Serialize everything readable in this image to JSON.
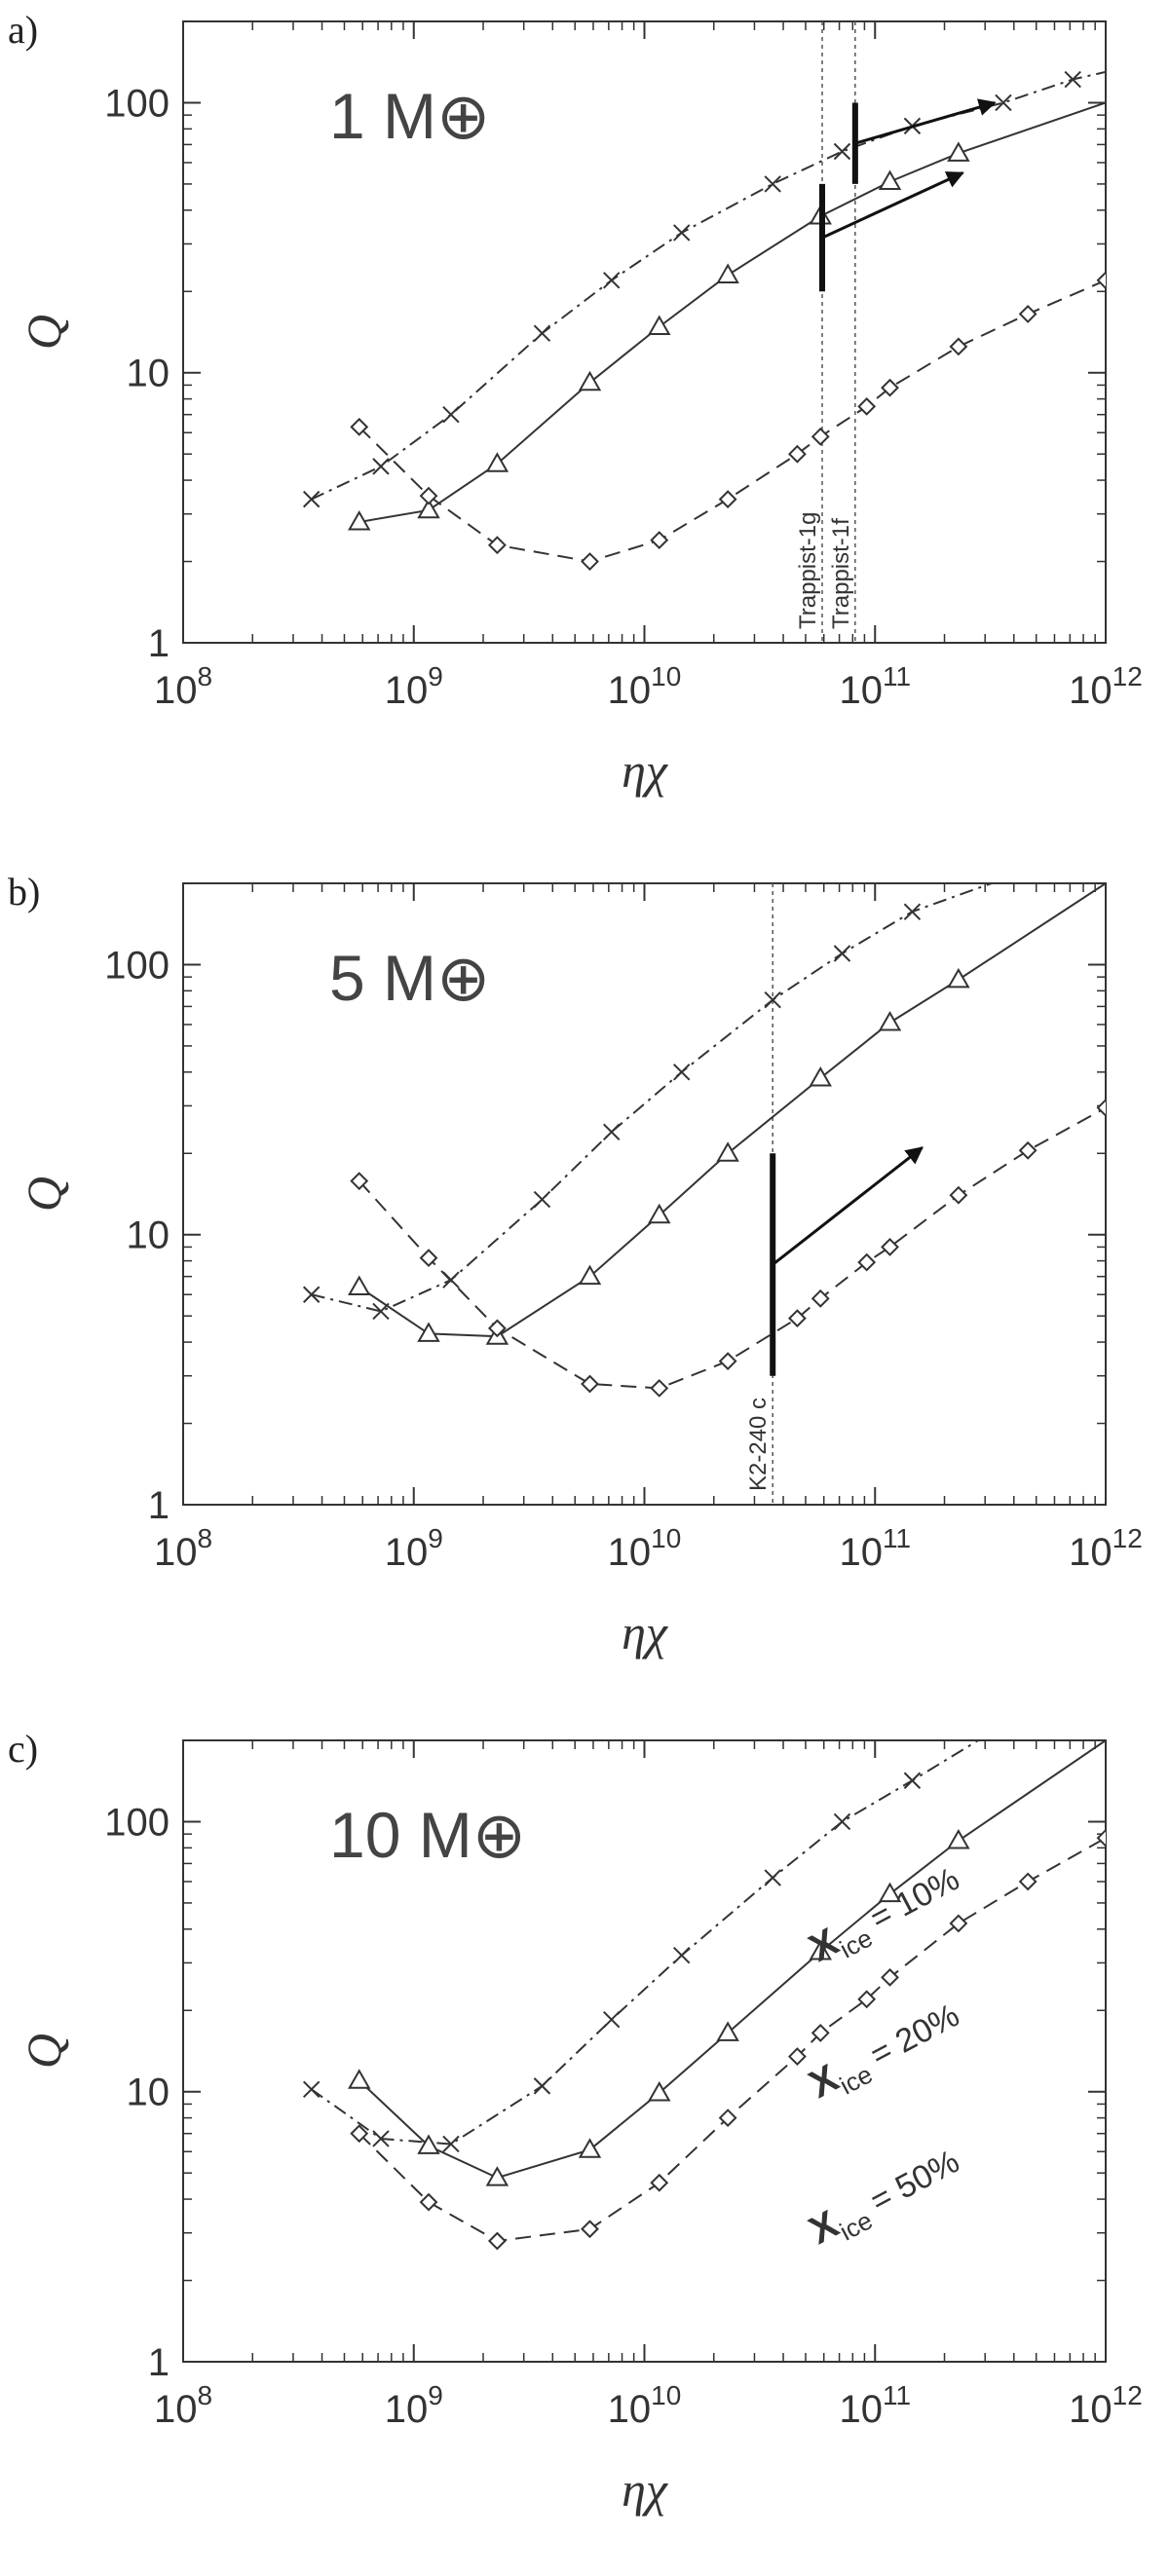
{
  "x_axis_label": "ηχ",
  "y_axis_label": "Q",
  "chart_data": [
    {
      "type": "line",
      "panel_tag": "a)",
      "mass_label": "1 M⊕",
      "xscale": "log",
      "yscale": "log",
      "xlim": [
        100000000.0,
        1000000000000.0
      ],
      "ylim": [
        1,
        200
      ],
      "x_ticks": [
        100000000.0,
        1000000000.0,
        10000000000.0,
        100000000000.0,
        1000000000000.0
      ],
      "x_tick_labels": [
        [
          "10",
          "8"
        ],
        [
          "10",
          "9"
        ],
        [
          "10",
          "10"
        ],
        [
          "10",
          "11"
        ],
        [
          "10",
          "12"
        ]
      ],
      "y_ticks": [
        1,
        10,
        100
      ],
      "y_tick_labels": [
        "1",
        "10",
        "100"
      ],
      "series": [
        {
          "key": "ice10",
          "style": "dashdot",
          "marker": "x",
          "points": [
            [
              360000000.0,
              3.4
            ],
            [
              720000000.0,
              4.5
            ],
            [
              1450000000.0,
              7.0
            ],
            [
              3600000000.0,
              14
            ],
            [
              7200000000.0,
              22
            ],
            [
              14500000000.0,
              33
            ],
            [
              36000000000.0,
              50
            ],
            [
              72000000000.0,
              66
            ],
            [
              145000000000.0,
              82
            ],
            [
              360000000000.0,
              100
            ],
            [
              720000000000.0,
              122
            ]
          ],
          "line_end": [
            1000000000000.0,
            130
          ]
        },
        {
          "key": "ice20",
          "style": "solid",
          "marker": "triangle",
          "points": [
            [
              580000000.0,
              2.8
            ],
            [
              1160000000.0,
              3.1
            ],
            [
              2300000000.0,
              4.6
            ],
            [
              5800000000.0,
              9.2
            ],
            [
              11600000000.0,
              14.8
            ],
            [
              23000000000.0,
              23
            ],
            [
              58000000000.0,
              38
            ],
            [
              116000000000.0,
              51
            ],
            [
              230000000000.0,
              65
            ]
          ],
          "line_end": [
            1000000000000.0,
            100
          ]
        },
        {
          "key": "ice50",
          "style": "dashed",
          "marker": "diamond",
          "points": [
            [
              580000000.0,
              6.3
            ],
            [
              1160000000.0,
              3.5
            ],
            [
              2300000000.0,
              2.3
            ],
            [
              5800000000.0,
              2.0
            ],
            [
              11600000000.0,
              2.4
            ],
            [
              23000000000.0,
              3.4
            ],
            [
              46000000000.0,
              5.0
            ],
            [
              58000000000.0,
              5.8
            ],
            [
              92000000000.0,
              7.5
            ],
            [
              116000000000.0,
              8.8
            ],
            [
              230000000000.0,
              12.5
            ],
            [
              460000000000.0,
              16.5
            ],
            [
              1000000000000.0,
              22
            ]
          ]
        }
      ],
      "markers": [
        {
          "label": "Trappist-1g",
          "x": 59000000000.0,
          "q_range": [
            20,
            50
          ],
          "arrow_to": [
            240000000000.0,
            55
          ]
        },
        {
          "label": "Trappist-1f",
          "x": 82000000000.0,
          "q_range": [
            50,
            100
          ],
          "arrow_to": [
            330000000000.0,
            100
          ]
        }
      ]
    },
    {
      "type": "line",
      "panel_tag": "b)",
      "mass_label": "5 M⊕",
      "xscale": "log",
      "yscale": "log",
      "xlim": [
        100000000.0,
        1000000000000.0
      ],
      "ylim": [
        1,
        200
      ],
      "x_ticks": [
        100000000.0,
        1000000000.0,
        10000000000.0,
        100000000000.0,
        1000000000000.0
      ],
      "x_tick_labels": [
        [
          "10",
          "8"
        ],
        [
          "10",
          "9"
        ],
        [
          "10",
          "10"
        ],
        [
          "10",
          "11"
        ],
        [
          "10",
          "12"
        ]
      ],
      "y_ticks": [
        1,
        10,
        100
      ],
      "y_tick_labels": [
        "1",
        "10",
        "100"
      ],
      "series": [
        {
          "key": "ice10",
          "style": "dashdot",
          "marker": "x",
          "points": [
            [
              360000000.0,
              6.0
            ],
            [
              720000000.0,
              5.2
            ],
            [
              1450000000.0,
              6.8
            ],
            [
              3600000000.0,
              13.5
            ],
            [
              7200000000.0,
              24
            ],
            [
              14500000000.0,
              40
            ],
            [
              36000000000.0,
              74
            ],
            [
              72000000000.0,
              110
            ],
            [
              145000000000.0,
              157
            ]
          ],
          "line_end": [
            320000000000.0,
            200
          ]
        },
        {
          "key": "ice20",
          "style": "solid",
          "marker": "triangle",
          "points": [
            [
              580000000.0,
              6.4
            ],
            [
              1160000000.0,
              4.3
            ],
            [
              2300000000.0,
              4.2
            ],
            [
              5800000000.0,
              7.0
            ],
            [
              11600000000.0,
              11.8
            ],
            [
              23000000000.0,
              20
            ],
            [
              58000000000.0,
              38
            ],
            [
              116000000000.0,
              61
            ],
            [
              230000000000.0,
              88
            ]
          ],
          "line_end": [
            1000000000000.0,
            200
          ]
        },
        {
          "key": "ice50",
          "style": "dashed",
          "marker": "diamond",
          "points": [
            [
              580000000.0,
              15.8
            ],
            [
              1160000000.0,
              8.2
            ],
            [
              2300000000.0,
              4.5
            ],
            [
              5800000000.0,
              2.8
            ],
            [
              11600000000.0,
              2.7
            ],
            [
              23000000000.0,
              3.4
            ],
            [
              46000000000.0,
              4.9
            ],
            [
              58000000000.0,
              5.8
            ],
            [
              92000000000.0,
              7.9
            ],
            [
              116000000000.0,
              9.0
            ],
            [
              230000000000.0,
              14
            ],
            [
              460000000000.0,
              20.5
            ],
            [
              1000000000000.0,
              29.5
            ]
          ]
        }
      ],
      "markers": [
        {
          "label": "K2-240 c",
          "x": 36000000000.0,
          "q_range": [
            3,
            20
          ],
          "arrow_to": [
            160000000000.0,
            21
          ]
        }
      ]
    },
    {
      "type": "line",
      "panel_tag": "c)",
      "mass_label": "10 M⊕",
      "xscale": "log",
      "yscale": "log",
      "xlim": [
        100000000.0,
        1000000000000.0
      ],
      "ylim": [
        1,
        200
      ],
      "x_ticks": [
        100000000.0,
        1000000000.0,
        10000000000.0,
        100000000000.0,
        1000000000000.0
      ],
      "x_tick_labels": [
        [
          "10",
          "8"
        ],
        [
          "10",
          "9"
        ],
        [
          "10",
          "10"
        ],
        [
          "10",
          "11"
        ],
        [
          "10",
          "12"
        ]
      ],
      "y_ticks": [
        1,
        10,
        100
      ],
      "y_tick_labels": [
        "1",
        "10",
        "100"
      ],
      "series": [
        {
          "key": "ice10",
          "name": "X_ice = 10%",
          "style": "dashdot",
          "marker": "x",
          "points": [
            [
              360000000.0,
              10.2
            ],
            [
              720000000.0,
              6.7
            ],
            [
              1450000000.0,
              6.4
            ],
            [
              3600000000.0,
              10.5
            ],
            [
              7200000000.0,
              18.5
            ],
            [
              14500000000.0,
              32
            ],
            [
              36000000000.0,
              62
            ],
            [
              72000000000.0,
              100
            ],
            [
              145000000000.0,
              142
            ]
          ],
          "line_end": [
            280000000000.0,
            200
          ]
        },
        {
          "key": "ice20",
          "name": "X_ice = 20%",
          "style": "solid",
          "marker": "triangle",
          "points": [
            [
              580000000.0,
              11
            ],
            [
              1160000000.0,
              6.3
            ],
            [
              2300000000.0,
              4.8
            ],
            [
              5800000000.0,
              6.1
            ],
            [
              11600000000.0,
              9.9
            ],
            [
              23000000000.0,
              16.5
            ],
            [
              58000000000.0,
              33
            ],
            [
              116000000000.0,
              54
            ],
            [
              230000000000.0,
              85
            ]
          ],
          "line_end": [
            1000000000000.0,
            200
          ]
        },
        {
          "key": "ice50",
          "name": "X_ice = 50%",
          "style": "dashed",
          "marker": "diamond",
          "points": [
            [
              580000000.0,
              7.0
            ],
            [
              1160000000.0,
              3.9
            ],
            [
              2300000000.0,
              2.8
            ],
            [
              5800000000.0,
              3.1
            ],
            [
              11600000000.0,
              4.6
            ],
            [
              23000000000.0,
              8.0
            ],
            [
              46000000000.0,
              13.5
            ],
            [
              58000000000.0,
              16.5
            ],
            [
              92000000000.0,
              22
            ],
            [
              116000000000.0,
              26.5
            ],
            [
              230000000000.0,
              42
            ],
            [
              460000000000.0,
              60
            ],
            [
              1000000000000.0,
              87
            ]
          ]
        }
      ],
      "markers": []
    }
  ]
}
